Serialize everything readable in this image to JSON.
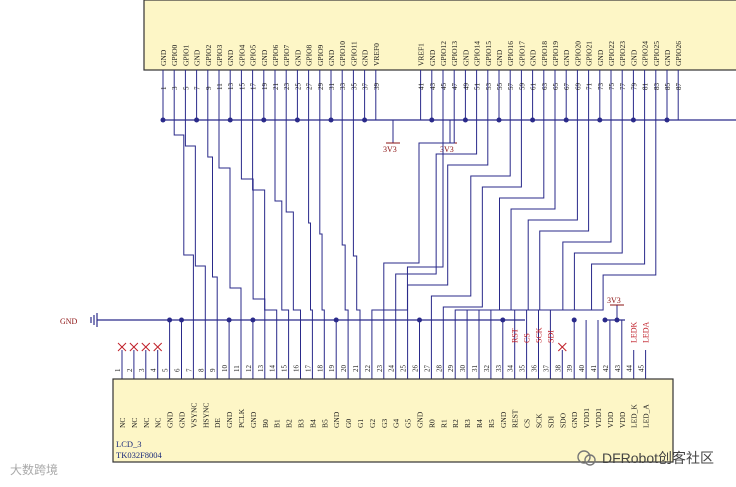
{
  "top_chip": {
    "pins": [
      {
        "name": "GND",
        "num": "1",
        "wire": true
      },
      {
        "name": "GPIO0",
        "num": "3",
        "wire": true
      },
      {
        "name": "GPIO1",
        "num": "5",
        "wire": true
      },
      {
        "name": "GND",
        "num": "7",
        "wire": true
      },
      {
        "name": "GPIO2",
        "num": "9",
        "wire": true
      },
      {
        "name": "GPIO3",
        "num": "11",
        "wire": true
      },
      {
        "name": "GND",
        "num": "13",
        "wire": true
      },
      {
        "name": "GPIO4",
        "num": "15",
        "wire": true
      },
      {
        "name": "GPIO5",
        "num": "17",
        "wire": true
      },
      {
        "name": "GND",
        "num": "19",
        "wire": true
      },
      {
        "name": "GPIO6",
        "num": "21",
        "wire": true
      },
      {
        "name": "GPIO7",
        "num": "23",
        "wire": true
      },
      {
        "name": "GND",
        "num": "25",
        "wire": true
      },
      {
        "name": "GPIO8",
        "num": "27",
        "wire": true
      },
      {
        "name": "GPIO9",
        "num": "29",
        "wire": true
      },
      {
        "name": "GND",
        "num": "31",
        "wire": true
      },
      {
        "name": "GPIO10",
        "num": "33",
        "wire": true
      },
      {
        "name": "GPIO11",
        "num": "35",
        "wire": true
      },
      {
        "name": "GND",
        "num": "37",
        "wire": true
      },
      {
        "name": "VREF0",
        "num": "39",
        "wire": true
      },
      {
        "name": "",
        "num": "",
        "wire": false
      },
      {
        "name": "",
        "num": "",
        "wire": false
      },
      {
        "name": "",
        "num": "",
        "wire": false
      },
      {
        "name": "VREF1",
        "num": "41",
        "wire": true
      },
      {
        "name": "GND",
        "num": "43",
        "wire": true
      },
      {
        "name": "GPIO12",
        "num": "45",
        "wire": true
      },
      {
        "name": "GPIO13",
        "num": "47",
        "wire": true
      },
      {
        "name": "GND",
        "num": "49",
        "wire": true
      },
      {
        "name": "GPIO14",
        "num": "51",
        "wire": true
      },
      {
        "name": "GPIO15",
        "num": "53",
        "wire": true
      },
      {
        "name": "GND",
        "num": "55",
        "wire": true
      },
      {
        "name": "GPIO16",
        "num": "57",
        "wire": true
      },
      {
        "name": "GPIO17",
        "num": "59",
        "wire": true
      },
      {
        "name": "GND",
        "num": "61",
        "wire": true
      },
      {
        "name": "GPIO18",
        "num": "63",
        "wire": true
      },
      {
        "name": "GPIO19",
        "num": "65",
        "wire": true
      },
      {
        "name": "GND",
        "num": "67",
        "wire": true
      },
      {
        "name": "GPIO20",
        "num": "69",
        "wire": true
      },
      {
        "name": "GPIO21",
        "num": "71",
        "wire": true
      },
      {
        "name": "GND",
        "num": "73",
        "wire": true
      },
      {
        "name": "GPIO22",
        "num": "75",
        "wire": true
      },
      {
        "name": "GPIO23",
        "num": "77",
        "wire": true
      },
      {
        "name": "GND",
        "num": "79",
        "wire": true
      },
      {
        "name": "GPIO24",
        "num": "81",
        "wire": true
      },
      {
        "name": "GPIO25",
        "num": "83",
        "wire": true
      },
      {
        "name": "GND",
        "num": "85",
        "wire": true
      },
      {
        "name": "GPIO26",
        "num": "87",
        "wire": true
      }
    ]
  },
  "net_labels": {
    "v33": "3V3",
    "gnd": "GND"
  },
  "lcd": {
    "ref": "LCD_3",
    "part": "TK032F8004",
    "pins": [
      {
        "num": "1",
        "name": "NC"
      },
      {
        "num": "2",
        "name": "NC"
      },
      {
        "num": "3",
        "name": "NC"
      },
      {
        "num": "4",
        "name": "NC"
      },
      {
        "num": "5",
        "name": "GND"
      },
      {
        "num": "6",
        "name": "GND"
      },
      {
        "num": "7",
        "name": "VSYNC"
      },
      {
        "num": "8",
        "name": "HSYNC"
      },
      {
        "num": "9",
        "name": "DE"
      },
      {
        "num": "10",
        "name": "GND"
      },
      {
        "num": "11",
        "name": "PCLK"
      },
      {
        "num": "12",
        "name": "GND"
      },
      {
        "num": "13",
        "name": "B0"
      },
      {
        "num": "14",
        "name": "B1"
      },
      {
        "num": "15",
        "name": "B2"
      },
      {
        "num": "16",
        "name": "B3"
      },
      {
        "num": "17",
        "name": "B4"
      },
      {
        "num": "18",
        "name": "B5"
      },
      {
        "num": "19",
        "name": "GND"
      },
      {
        "num": "20",
        "name": "G0"
      },
      {
        "num": "21",
        "name": "G1"
      },
      {
        "num": "22",
        "name": "G2"
      },
      {
        "num": "23",
        "name": "G3"
      },
      {
        "num": "24",
        "name": "G4"
      },
      {
        "num": "25",
        "name": "G5"
      },
      {
        "num": "26",
        "name": "GND"
      },
      {
        "num": "27",
        "name": "R0"
      },
      {
        "num": "28",
        "name": "R1"
      },
      {
        "num": "29",
        "name": "R2"
      },
      {
        "num": "30",
        "name": "R3"
      },
      {
        "num": "31",
        "name": "R4"
      },
      {
        "num": "32",
        "name": "R5"
      },
      {
        "num": "33",
        "name": "GND"
      },
      {
        "num": "34",
        "name": "REST"
      },
      {
        "num": "35",
        "name": "CS"
      },
      {
        "num": "36",
        "name": "SCK"
      },
      {
        "num": "37",
        "name": "SDI"
      },
      {
        "num": "38",
        "name": "SDO"
      },
      {
        "num": "39",
        "name": "GND"
      },
      {
        "num": "40",
        "name": "VDD1"
      },
      {
        "num": "41",
        "name": "VDD1"
      },
      {
        "num": "42",
        "name": "VDD"
      },
      {
        "num": "43",
        "name": "VDD"
      },
      {
        "num": "44",
        "name": "LED_K"
      },
      {
        "num": "45",
        "name": "LED_A"
      }
    ],
    "spi_labels": [
      "RST",
      "CS",
      "SCK",
      "SDI"
    ],
    "led_labels": [
      "LEDK",
      "LEDA"
    ]
  },
  "watermark": {
    "left": "大数跨境",
    "right": "DFRobot创客社区"
  },
  "colors": {
    "chip_fill": "#fdf6c6",
    "wire": "#2a2a8a",
    "net_label": "#8b1010",
    "red_label": "#c0202a",
    "chip_border": "#333333"
  }
}
